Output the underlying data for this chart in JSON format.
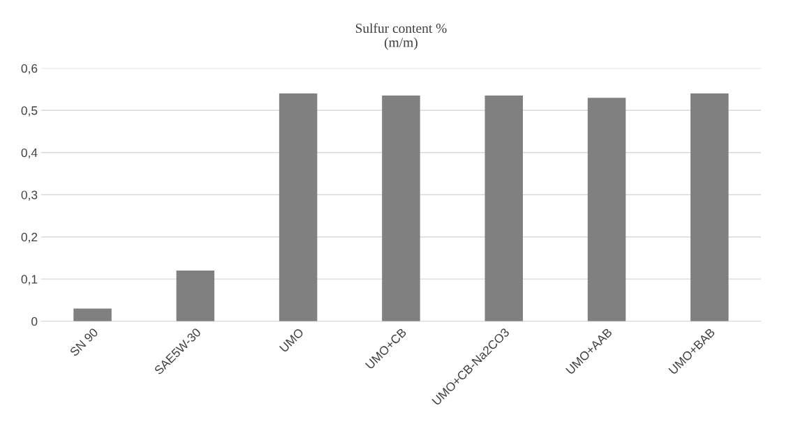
{
  "chart_data": {
    "type": "bar",
    "title": "Sulfur content %\n(m/m)",
    "categories": [
      "SN 90",
      "SAE5W-30",
      "UMO",
      "UMO+CB",
      "UMO+CB-Na2CO3",
      "UMO+AAB",
      "UMO+BAB"
    ],
    "values": [
      0.03,
      0.12,
      0.54,
      0.535,
      0.535,
      0.53,
      0.54
    ],
    "color": "#808080",
    "ylim": [
      0,
      0.6
    ],
    "yticks": [
      0,
      {
        "value": 0.1,
        "label": "0,1"
      },
      {
        "value": 0.2,
        "label": "0,2"
      },
      {
        "value": 0.3,
        "label": "0,3"
      },
      {
        "value": 0.4,
        "label": "0,4"
      },
      {
        "value": 0.5,
        "label": "0,5"
      },
      {
        "value": 0.6,
        "label": "0,6"
      }
    ],
    "grid": "y",
    "legend": false
  }
}
